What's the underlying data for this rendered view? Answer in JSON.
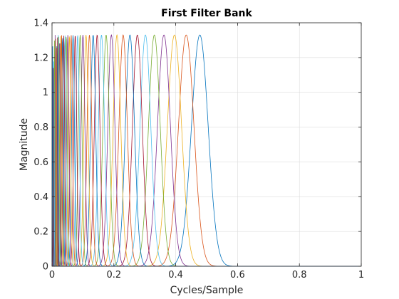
{
  "chart_data": {
    "type": "line",
    "title": "First Filter Bank",
    "xlabel": "Cycles/Sample",
    "ylabel": "Magnitude",
    "xlim": [
      0,
      1
    ],
    "ylim": [
      0,
      1.4
    ],
    "xticks": [
      "0",
      "0.2",
      "0.4",
      "0.6",
      "0.8",
      "1"
    ],
    "yticks": [
      "0",
      "0.2",
      "0.4",
      "0.6",
      "0.8",
      "1",
      "1.2",
      "1.4"
    ],
    "grid": true,
    "legend": "none",
    "filter_shape": "gaussian",
    "series": [
      {
        "center": 0.478,
        "peak": 1.33,
        "width": 0.027,
        "color": "#0072BD"
      },
      {
        "center": 0.434,
        "peak": 1.33,
        "width": 0.025,
        "color": "#D95319"
      },
      {
        "center": 0.396,
        "peak": 1.33,
        "width": 0.023,
        "color": "#EDB120"
      },
      {
        "center": 0.362,
        "peak": 1.33,
        "width": 0.021,
        "color": "#7E2F8E"
      },
      {
        "center": 0.331,
        "peak": 1.33,
        "width": 0.019,
        "color": "#77AC30"
      },
      {
        "center": 0.302,
        "peak": 1.33,
        "width": 0.0175,
        "color": "#4DBEEE"
      },
      {
        "center": 0.276,
        "peak": 1.33,
        "width": 0.016,
        "color": "#A2142F"
      },
      {
        "center": 0.252,
        "peak": 1.33,
        "width": 0.0148,
        "color": "#0072BD"
      },
      {
        "center": 0.23,
        "peak": 1.33,
        "width": 0.0136,
        "color": "#D95319"
      },
      {
        "center": 0.21,
        "peak": 1.33,
        "width": 0.0125,
        "color": "#EDB120"
      },
      {
        "center": 0.192,
        "peak": 1.33,
        "width": 0.0115,
        "color": "#7E2F8E"
      },
      {
        "center": 0.175,
        "peak": 1.33,
        "width": 0.0106,
        "color": "#77AC30"
      },
      {
        "center": 0.16,
        "peak": 1.33,
        "width": 0.0098,
        "color": "#4DBEEE"
      },
      {
        "center": 0.146,
        "peak": 1.33,
        "width": 0.009,
        "color": "#A2142F"
      },
      {
        "center": 0.133,
        "peak": 1.33,
        "width": 0.0083,
        "color": "#0072BD"
      },
      {
        "center": 0.121,
        "peak": 1.33,
        "width": 0.0076,
        "color": "#D95319"
      },
      {
        "center": 0.11,
        "peak": 1.33,
        "width": 0.007,
        "color": "#EDB120"
      },
      {
        "center": 0.1,
        "peak": 1.33,
        "width": 0.0064,
        "color": "#7E2F8E"
      },
      {
        "center": 0.091,
        "peak": 1.33,
        "width": 0.0059,
        "color": "#77AC30"
      },
      {
        "center": 0.083,
        "peak": 1.33,
        "width": 0.0054,
        "color": "#4DBEEE"
      },
      {
        "center": 0.075,
        "peak": 1.33,
        "width": 0.005,
        "color": "#A2142F"
      },
      {
        "center": 0.068,
        "peak": 1.33,
        "width": 0.0046,
        "color": "#0072BD"
      },
      {
        "center": 0.062,
        "peak": 1.33,
        "width": 0.0042,
        "color": "#D95319"
      },
      {
        "center": 0.056,
        "peak": 1.33,
        "width": 0.0039,
        "color": "#EDB120"
      },
      {
        "center": 0.051,
        "peak": 1.33,
        "width": 0.0036,
        "color": "#7E2F8E"
      },
      {
        "center": 0.046,
        "peak": 1.33,
        "width": 0.0033,
        "color": "#77AC30"
      },
      {
        "center": 0.042,
        "peak": 1.33,
        "width": 0.003,
        "color": "#4DBEEE"
      },
      {
        "center": 0.038,
        "peak": 1.33,
        "width": 0.0028,
        "color": "#A2142F"
      },
      {
        "center": 0.034,
        "peak": 1.33,
        "width": 0.0026,
        "color": "#0072BD"
      },
      {
        "center": 0.031,
        "peak": 1.33,
        "width": 0.0024,
        "color": "#D95319"
      },
      {
        "center": 0.028,
        "peak": 1.33,
        "width": 0.0022,
        "color": "#EDB120"
      },
      {
        "center": 0.025,
        "peak": 1.33,
        "width": 0.002,
        "color": "#7E2F8E"
      },
      {
        "center": 0.022,
        "peak": 1.33,
        "width": 0.0018,
        "color": "#77AC30"
      },
      {
        "center": 0.02,
        "peak": 1.33,
        "width": 0.0017,
        "color": "#4DBEEE"
      },
      {
        "center": 0.018,
        "peak": 1.33,
        "width": 0.0015,
        "color": "#A2142F"
      },
      {
        "center": 0.016,
        "peak": 1.33,
        "width": 0.0014,
        "color": "#0072BD"
      },
      {
        "center": 0.014,
        "peak": 1.33,
        "width": 0.0013,
        "color": "#D95319"
      },
      {
        "center": 0.012,
        "peak": 1.33,
        "width": 0.0012,
        "color": "#EDB120"
      },
      {
        "center": 0.01,
        "peak": 1.33,
        "width": 0.0011,
        "color": "#7E2F8E"
      },
      {
        "center": 0.008,
        "peak": 1.33,
        "width": 0.001,
        "color": "#77AC30"
      },
      {
        "center": 0.006,
        "peak": 1.33,
        "width": 0.0009,
        "color": "#4DBEEE"
      },
      {
        "center": 0.004,
        "peak": 1.33,
        "width": 0.0008,
        "color": "#A2142F"
      },
      {
        "center": 0.002,
        "peak": 1.33,
        "width": 0.0007,
        "color": "#0072BD"
      }
    ]
  }
}
